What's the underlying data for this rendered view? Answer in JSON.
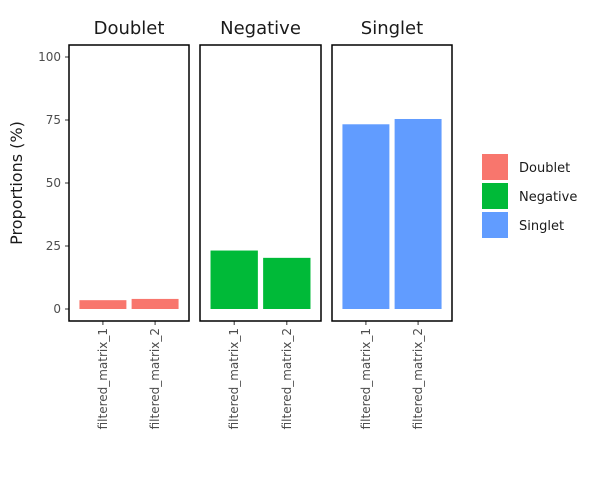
{
  "chart_data": {
    "type": "bar",
    "ylabel": "Proportions (%)",
    "ylim": [
      0,
      100
    ],
    "y_ticks": [
      "0",
      "25",
      "50",
      "75",
      "100"
    ],
    "y_tick_values": [
      0,
      25,
      50,
      75,
      100
    ],
    "categories": [
      "filtered_matrix_1",
      "filtered_matrix_2"
    ],
    "grid": false,
    "legend_position": "right",
    "facets": [
      {
        "title": "Doublet",
        "color": "#F8766D",
        "values": [
          3.5,
          4.0
        ]
      },
      {
        "title": "Negative",
        "color": "#00BA38",
        "values": [
          23.2,
          20.3
        ]
      },
      {
        "title": "Singlet",
        "color": "#619CFF",
        "values": [
          73.3,
          75.4
        ]
      }
    ],
    "legend": [
      {
        "label": "Doublet",
        "color": "#F8766D"
      },
      {
        "label": "Negative",
        "color": "#00BA38"
      },
      {
        "label": "Singlet",
        "color": "#619CFF"
      }
    ]
  }
}
